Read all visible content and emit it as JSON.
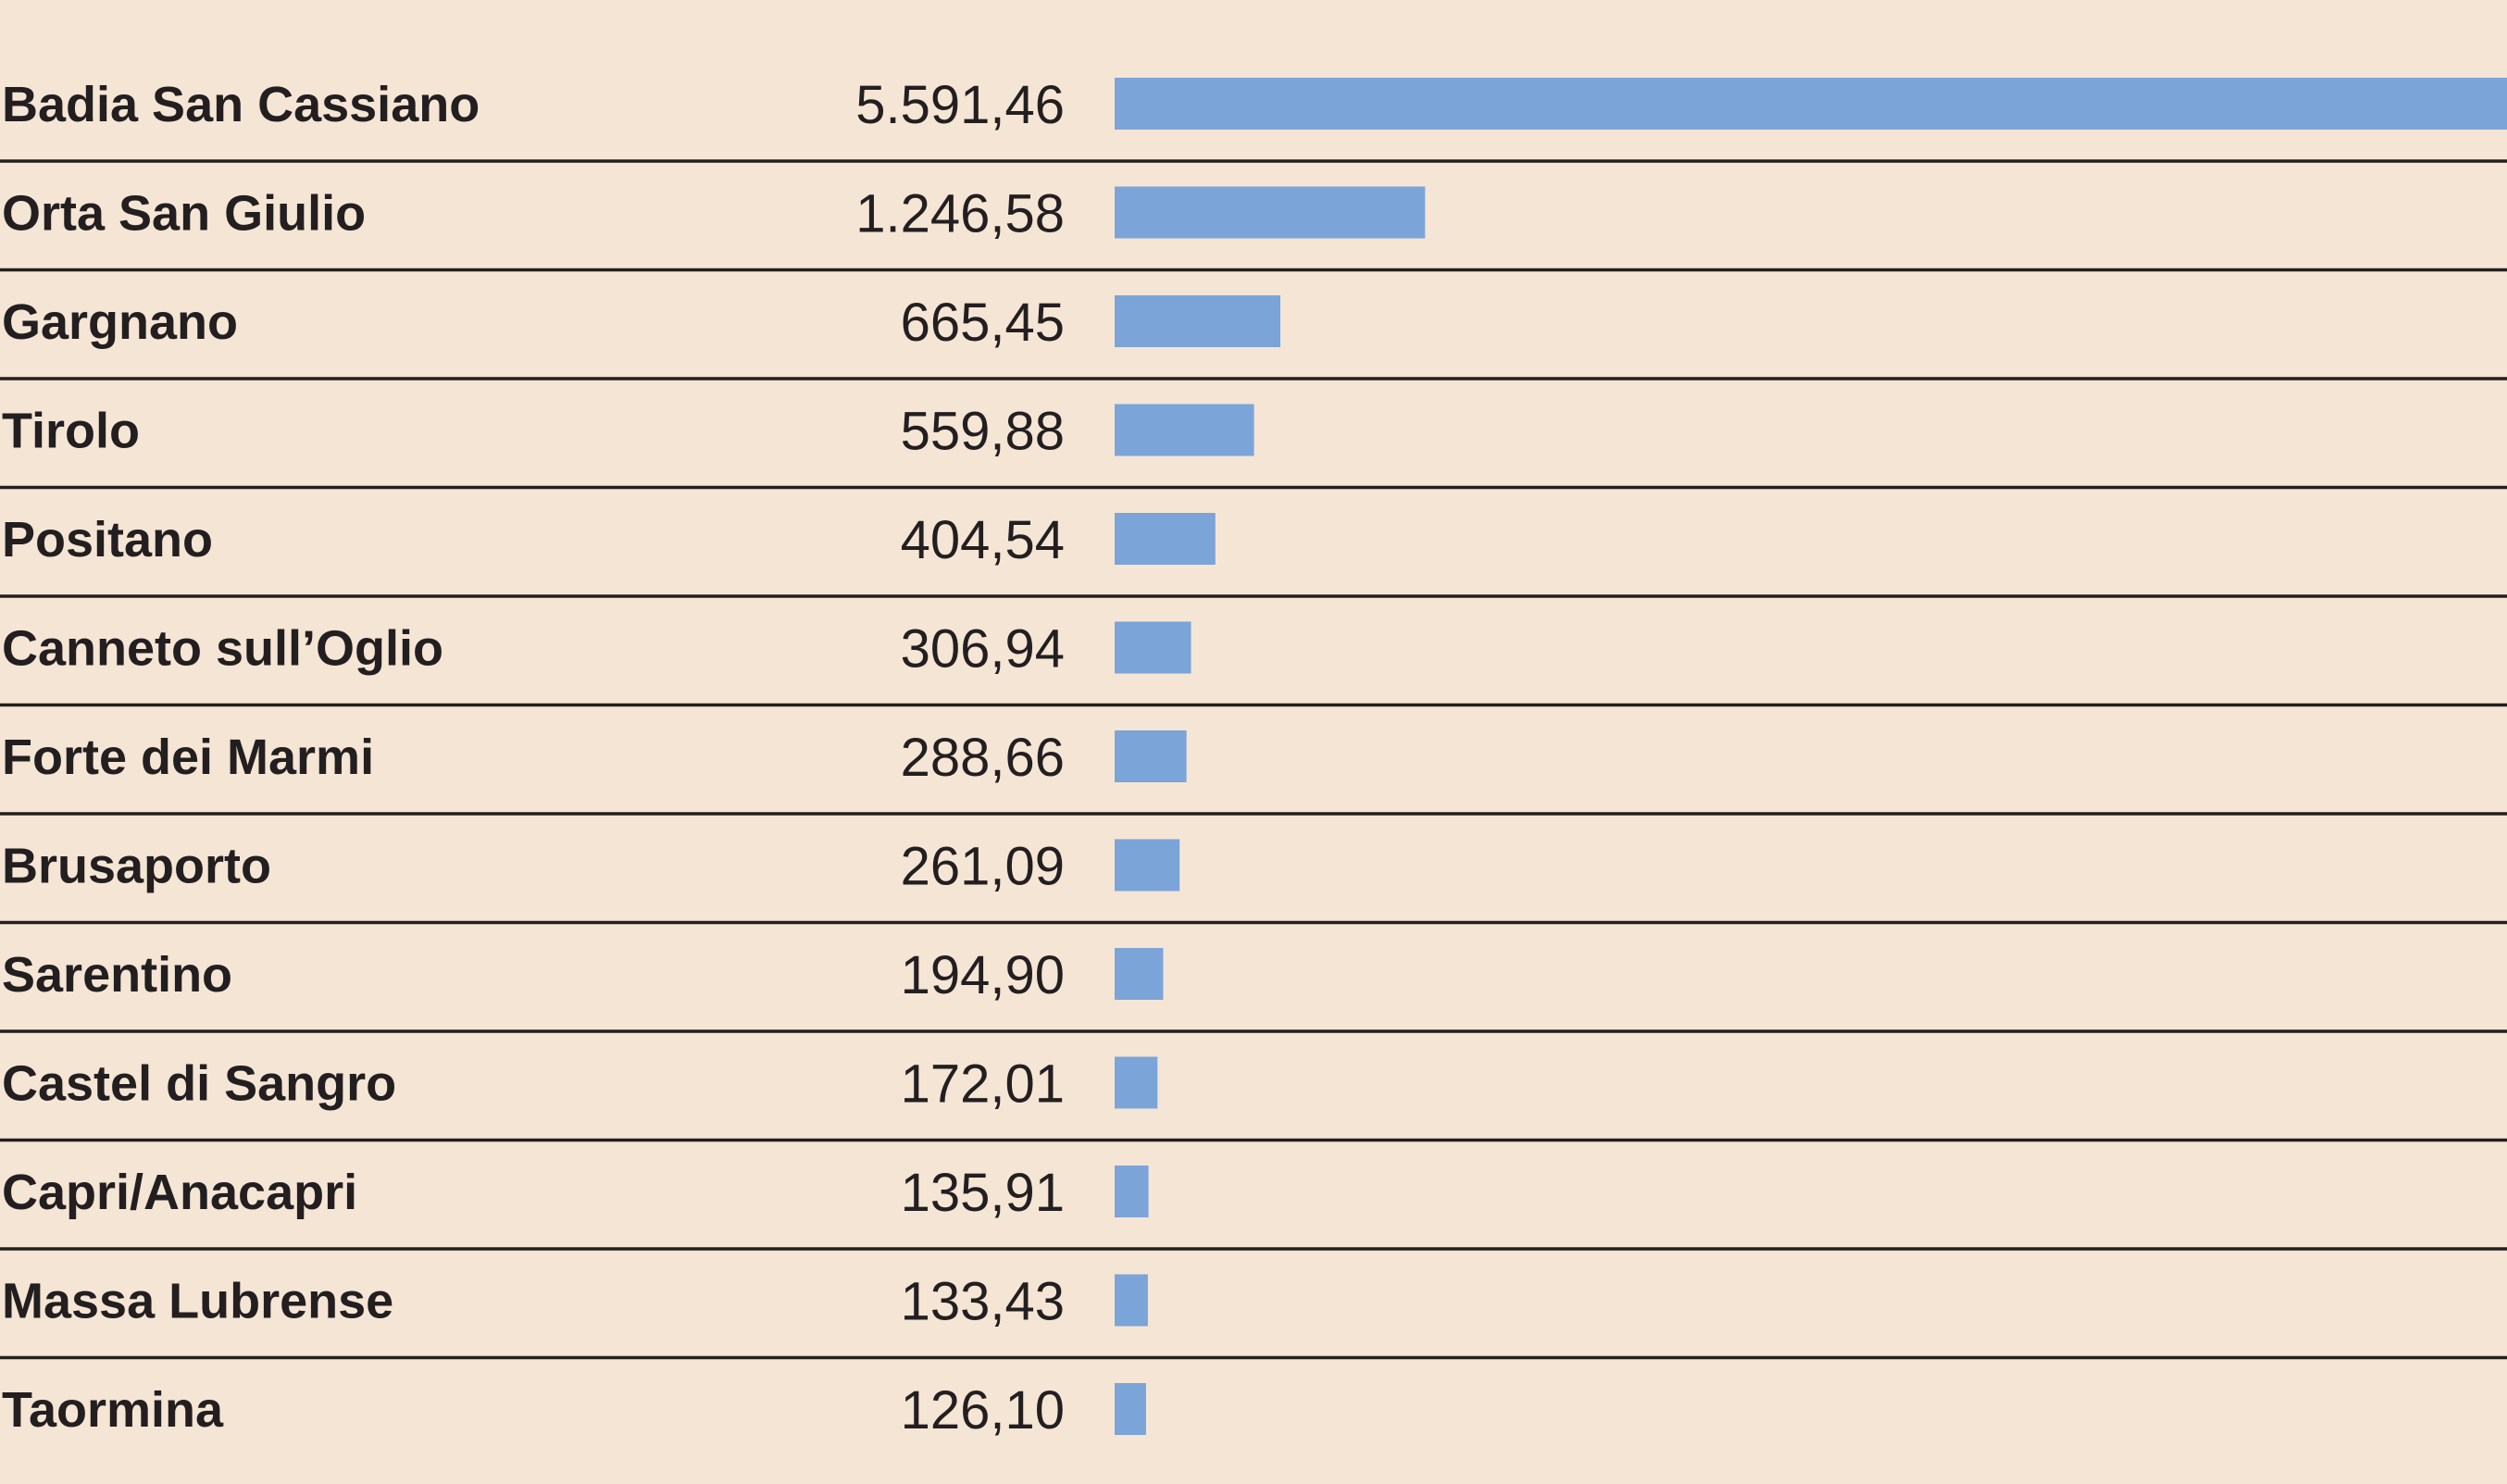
{
  "chart_data": {
    "type": "bar",
    "orientation": "horizontal",
    "categories": [
      "Badia San Cassiano",
      "Orta San Giulio",
      "Gargnano",
      "Tirolo",
      "Positano",
      "Canneto sull’Oglio",
      "Forte dei Marmi",
      "Brusaporto",
      "Sarentino",
      "Castel di Sangro",
      "Capri/Anacapri",
      "Massa Lubrense",
      "Taormina"
    ],
    "values": [
      5591.46,
      1246.58,
      665.45,
      559.88,
      404.54,
      306.94,
      288.66,
      261.09,
      194.9,
      172.01,
      135.91,
      133.43,
      126.1
    ],
    "value_labels": [
      "5.591,46",
      "1.246,58",
      "665,45",
      "559,88",
      "404,54",
      "306,94",
      "288,66",
      "261,09",
      "194,90",
      "172,01",
      "135,91",
      "133,43",
      "126,10"
    ],
    "xlim": [
      0,
      5591.46
    ],
    "title": "",
    "xlabel": "",
    "ylabel": "",
    "grid": false,
    "legend": "none",
    "bar_color": "#7ba4d9",
    "background_color": "#f5e5d5",
    "text_color": "#231f20"
  }
}
